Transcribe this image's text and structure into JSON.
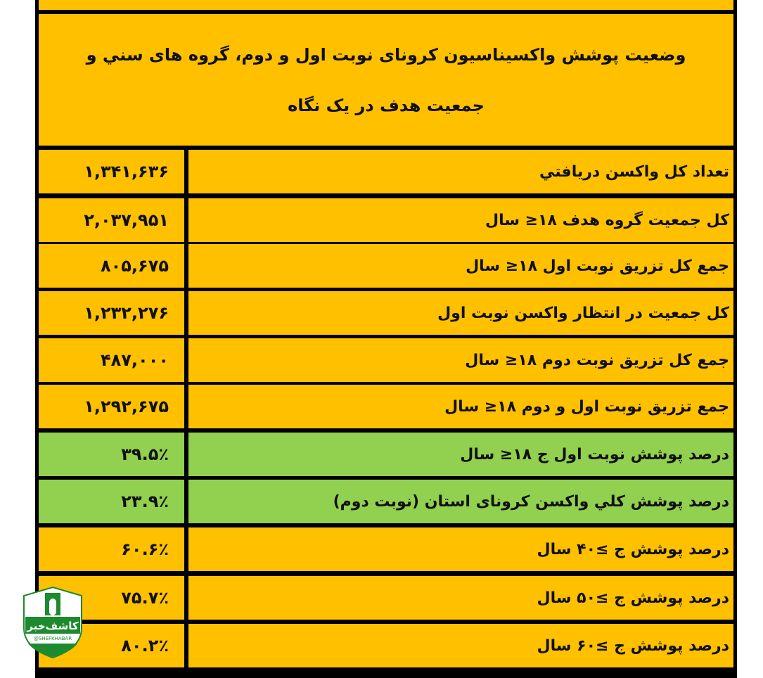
{
  "title": "وضعیت پوشش واکسیناسیون کرونای نوبت اول و دوم، گروه های سني و جمعیت هدف در یک نگاه",
  "colors": {
    "yellow": "#ffc000",
    "green": "#92d050",
    "border": "#000000"
  },
  "rows": [
    {
      "label": "تعداد کل واکسن دریافتي",
      "value": "۱,۳۴۱,۶۳۶",
      "highlight": false
    },
    {
      "label": "کل جمعیت گروه هدف ۱۸≤ سال",
      "value": "۲,۰۳۷,۹۵۱",
      "highlight": false
    },
    {
      "label": "جمع کل تزریق نوبت اول ۱۸≤ سال",
      "value": "۸۰۵,۶۷۵",
      "highlight": false
    },
    {
      "label": "کل جمعیت در انتظار واکسن نوبت اول",
      "value": "۱,۲۳۲,۲۷۶",
      "highlight": false
    },
    {
      "label": "جمع کل تزریق نوبت دوم ۱۸≤ سال",
      "value": "۴۸۷,۰۰۰",
      "highlight": false
    },
    {
      "label": "جمع تزریق نوبت اول و دوم ۱۸≤ سال",
      "value": "۱,۲۹۲,۶۷۵",
      "highlight": false
    },
    {
      "label": "درصد پوشش نوبت اول ج ۱۸≤ سال",
      "value": "۳۹.۵٪",
      "highlight": true
    },
    {
      "label": "درصد پوشش کلي واکسن کرونای استان (نوبت دوم)",
      "value": "۲۳.۹٪",
      "highlight": true
    },
    {
      "label": "درصد پوشش ج ≥۴۰ سال",
      "value": "۶۰.۶٪",
      "highlight": false
    },
    {
      "label": "درصد پوشش ج ≥۵۰ سال",
      "value": "۷۵.۷٪",
      "highlight": false
    },
    {
      "label": "درصد پوشش ج ≥۶۰ سال",
      "value": "۸۰.۲٪",
      "highlight": false
    }
  ],
  "watermark": {
    "name": "کاشف خبر",
    "handle": "@SHEFKHABAR"
  }
}
